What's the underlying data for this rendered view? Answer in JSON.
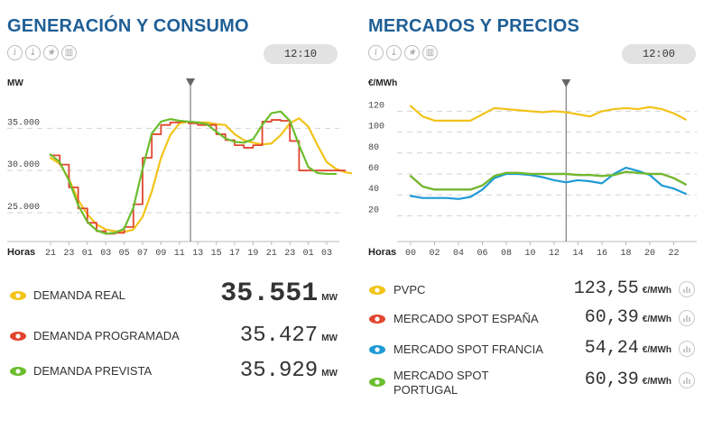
{
  "left": {
    "title": "GENERACIÓN Y CONSUMO",
    "time": "12:10",
    "unit": "MW",
    "xaxis_label": "Horas",
    "legend": [
      {
        "label": "DEMANDA REAL",
        "value": "35.551",
        "unit": "MW",
        "color": "#f2c318"
      },
      {
        "label": "DEMANDA PROGRAMADA",
        "value": "35.427",
        "unit": "MW",
        "color": "#e0452e"
      },
      {
        "label": "DEMANDA PREVISTA",
        "value": "35.929",
        "unit": "MW",
        "color": "#6bbd2d"
      }
    ]
  },
  "right": {
    "title": "MERCADOS Y PRECIOS",
    "time": "12:00",
    "unit": "€/MWh",
    "xaxis_label": "Horas",
    "legend": [
      {
        "label": "PVPC",
        "value": "123,55",
        "unit": "€/MWh",
        "color": "#f2c318"
      },
      {
        "label": "MERCADO SPOT ESPAÑA",
        "value": "60,39",
        "unit": "€/MWh",
        "color": "#e0452e"
      },
      {
        "label": "MERCADO SPOT FRANCIA",
        "value": "54,24",
        "unit": "€/MWh",
        "color": "#1e9ad6"
      },
      {
        "label": "MERCADO SPOT PORTUGAL",
        "value": "60,39",
        "unit": "€/MWh",
        "color": "#6bbd2d"
      }
    ]
  },
  "chart_data": [
    {
      "type": "line",
      "title": "GENERACIÓN Y CONSUMO",
      "ylabel": "MW",
      "xlabel": "Horas",
      "ylim": [
        22000,
        39000
      ],
      "yticks": [
        "25.000",
        "30.000",
        "35.000"
      ],
      "ytick_values": [
        25000,
        30000,
        35000
      ],
      "xticks": [
        "21",
        "23",
        "01",
        "03",
        "05",
        "07",
        "09",
        "11",
        "13",
        "15",
        "17",
        "19",
        "21",
        "23",
        "01",
        "03"
      ],
      "x_hours": [
        0,
        2,
        4,
        6,
        8,
        10,
        12,
        14,
        16,
        18,
        20,
        22,
        24,
        26,
        28,
        30
      ],
      "now_hour": 15.2,
      "series": [
        {
          "name": "Demanda real",
          "color": "#f2c318",
          "x": [
            0,
            1,
            2,
            3,
            4,
            5,
            6,
            7,
            8,
            9,
            10,
            11,
            12,
            13,
            14,
            15,
            16,
            17,
            18,
            19,
            20,
            21,
            22,
            23,
            24,
            25,
            26,
            27,
            28,
            29,
            30,
            31,
            32,
            33
          ],
          "values": [
            31500,
            30800,
            29000,
            26500,
            24800,
            23600,
            23000,
            22800,
            22700,
            23000,
            24500,
            27500,
            31500,
            34200,
            35600,
            35800,
            35700,
            35700,
            35500,
            35400,
            34300,
            33600,
            33300,
            33100,
            33200,
            34200,
            35600,
            36200,
            35200,
            33000,
            31000,
            30200,
            29800,
            29600
          ]
        },
        {
          "name": "Demanda programada",
          "color": "#e0452e",
          "step": true,
          "x": [
            0,
            1,
            2,
            3,
            4,
            5,
            6,
            7,
            8,
            9,
            10,
            11,
            12,
            13,
            14,
            15,
            16,
            17,
            18,
            19,
            20,
            21,
            22,
            23,
            24,
            25,
            26,
            27,
            28,
            29,
            30,
            31
          ],
          "values": [
            31800,
            30700,
            28000,
            25500,
            23800,
            22800,
            22500,
            22600,
            23300,
            26000,
            31500,
            34300,
            35400,
            35700,
            35800,
            35600,
            35400,
            35400,
            34300,
            33600,
            33000,
            32700,
            33000,
            35800,
            36000,
            35900,
            33500,
            30000,
            30000,
            30000,
            30000,
            30000
          ]
        },
        {
          "name": "Demanda prevista",
          "color": "#6bbd2d",
          "x": [
            0,
            1,
            2,
            3,
            4,
            5,
            6,
            7,
            8,
            9,
            10,
            11,
            12,
            13,
            14,
            15,
            16,
            17,
            18,
            19,
            20,
            21,
            22,
            23,
            24,
            25,
            26,
            27,
            28,
            29,
            30,
            31
          ],
          "values": [
            31900,
            31000,
            28800,
            25900,
            23900,
            22900,
            22500,
            22600,
            23100,
            25600,
            30200,
            34400,
            35800,
            36100,
            35900,
            35800,
            35700,
            35500,
            34600,
            33800,
            33400,
            33300,
            33700,
            35400,
            36800,
            37000,
            35900,
            33000,
            30400,
            29700,
            29600,
            29600
          ]
        }
      ]
    },
    {
      "type": "line",
      "title": "MERCADOS Y PRECIOS",
      "ylabel": "€/MWh",
      "xlabel": "Horas",
      "ylim": [
        10,
        135
      ],
      "yticks": [
        "20",
        "40",
        "60",
        "80",
        "100",
        "120"
      ],
      "ytick_values": [
        20,
        40,
        60,
        80,
        100,
        120
      ],
      "xticks": [
        "00",
        "02",
        "04",
        "06",
        "08",
        "10",
        "12",
        "14",
        "16",
        "18",
        "20",
        "22"
      ],
      "x_hours": [
        0,
        2,
        4,
        6,
        8,
        10,
        12,
        14,
        16,
        18,
        20,
        22
      ],
      "now_hour": 13,
      "series": [
        {
          "name": "PVPC",
          "color": "#f2c318",
          "x": [
            0,
            1,
            2,
            3,
            4,
            5,
            6,
            7,
            8,
            9,
            10,
            11,
            12,
            13,
            14,
            15,
            16,
            17,
            18,
            19,
            20,
            21,
            22,
            23
          ],
          "values": [
            125,
            115,
            111,
            111,
            111,
            111,
            117,
            123,
            122,
            121,
            120,
            119,
            120,
            119,
            117,
            115,
            120,
            122,
            123,
            122,
            124,
            122,
            118,
            112
          ]
        },
        {
          "name": "Mercado spot España",
          "color": "#e0452e",
          "x": [
            0,
            1,
            2,
            3,
            4,
            5,
            6,
            7,
            8,
            9,
            10,
            11,
            12,
            13,
            14,
            15,
            16,
            17,
            18,
            19,
            20,
            21,
            22,
            23
          ],
          "values": [
            58,
            48,
            45,
            45,
            45,
            45,
            49,
            58,
            61,
            61,
            60,
            60,
            60,
            60,
            59,
            59,
            58,
            59,
            62,
            61,
            60,
            60,
            56,
            50
          ]
        },
        {
          "name": "Mercado spot Francia",
          "color": "#1e9ad6",
          "x": [
            0,
            1,
            2,
            3,
            4,
            5,
            6,
            7,
            8,
            9,
            10,
            11,
            12,
            13,
            14,
            15,
            16,
            17,
            18,
            19,
            20,
            21,
            22,
            23
          ],
          "values": [
            39,
            37,
            37,
            37,
            36,
            38,
            45,
            56,
            60,
            60,
            59,
            57,
            54,
            52,
            54,
            53,
            51,
            60,
            66,
            63,
            59,
            49,
            46,
            41
          ]
        },
        {
          "name": "Mercado spot Portugal",
          "color": "#6bbd2d",
          "x": [
            0,
            1,
            2,
            3,
            4,
            5,
            6,
            7,
            8,
            9,
            10,
            11,
            12,
            13,
            14,
            15,
            16,
            17,
            18,
            19,
            20,
            21,
            22,
            23
          ],
          "values": [
            58,
            48,
            45,
            45,
            45,
            45,
            49,
            58,
            61,
            61,
            60,
            60,
            60,
            60,
            59,
            59,
            58,
            59,
            62,
            61,
            60,
            60,
            56,
            50
          ]
        }
      ]
    }
  ]
}
